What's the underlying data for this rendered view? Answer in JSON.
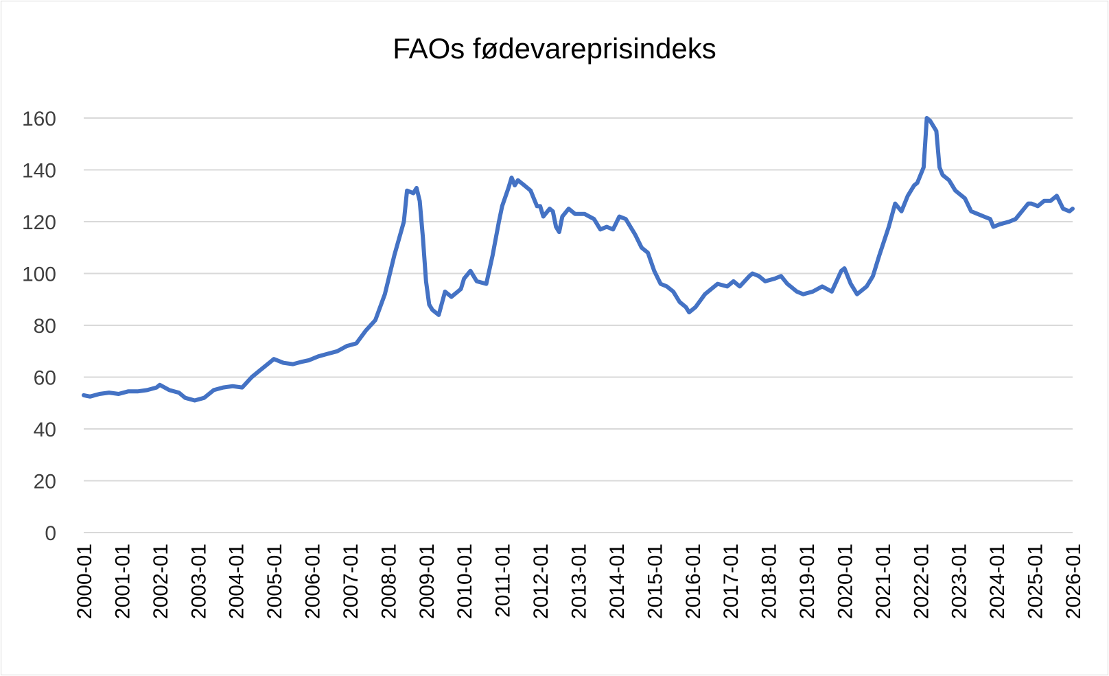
{
  "chart_data": {
    "type": "line",
    "title": "FAOs fødevareprisindeks",
    "xlabel": "",
    "ylabel": "",
    "ylim": [
      0,
      160
    ],
    "yticks": [
      "0",
      "20",
      "40",
      "60",
      "80",
      "100",
      "120",
      "140",
      "160"
    ],
    "xticks": [
      "2000-01",
      "2001-01",
      "2002-01",
      "2003-01",
      "2004-01",
      "2005-01",
      "2006-01",
      "2007-01",
      "2008-01",
      "2009-01",
      "2010-01",
      "2011-01",
      "2012-01",
      "2013-01",
      "2014-01",
      "2015-01",
      "2016-01",
      "2017-01",
      "2018-01",
      "2019-01",
      "2020-01",
      "2021-01",
      "2022-01",
      "2023-01",
      "2024-01",
      "2025-01",
      "2026-01"
    ],
    "grid": "horizontal",
    "line_color": "#4472c4",
    "series": [
      {
        "points": [
          [
            "2000-01",
            53
          ],
          [
            "2000-03",
            52.5
          ],
          [
            "2000-06",
            53.5
          ],
          [
            "2000-09",
            54
          ],
          [
            "2000-12",
            53.5
          ],
          [
            "2001-03",
            54.5
          ],
          [
            "2001-06",
            54.5
          ],
          [
            "2001-09",
            55
          ],
          [
            "2001-12",
            56
          ],
          [
            "2002-01",
            57
          ],
          [
            "2002-04",
            55
          ],
          [
            "2002-07",
            54
          ],
          [
            "2002-09",
            52
          ],
          [
            "2002-12",
            51
          ],
          [
            "2003-03",
            52
          ],
          [
            "2003-06",
            55
          ],
          [
            "2003-09",
            56
          ],
          [
            "2003-12",
            56.5
          ],
          [
            "2004-03",
            56
          ],
          [
            "2004-06",
            60
          ],
          [
            "2004-09",
            63
          ],
          [
            "2004-12",
            66
          ],
          [
            "2005-01",
            67
          ],
          [
            "2005-04",
            65.5
          ],
          [
            "2005-07",
            65
          ],
          [
            "2005-10",
            66
          ],
          [
            "2005-12",
            66.5
          ],
          [
            "2006-03",
            68
          ],
          [
            "2006-06",
            69
          ],
          [
            "2006-09",
            70
          ],
          [
            "2006-12",
            72
          ],
          [
            "2007-03",
            73
          ],
          [
            "2007-06",
            78
          ],
          [
            "2007-09",
            82
          ],
          [
            "2007-12",
            92
          ],
          [
            "2008-03",
            107
          ],
          [
            "2008-06",
            120
          ],
          [
            "2008-07",
            132
          ],
          [
            "2008-09",
            131
          ],
          [
            "2008-10",
            133
          ],
          [
            "2008-11",
            128
          ],
          [
            "2008-12",
            114
          ],
          [
            "2009-01",
            97
          ],
          [
            "2009-02",
            88
          ],
          [
            "2009-03",
            86
          ],
          [
            "2009-05",
            84
          ],
          [
            "2009-07",
            93
          ],
          [
            "2009-09",
            91
          ],
          [
            "2009-11",
            93
          ],
          [
            "2009-12",
            94
          ],
          [
            "2010-01",
            98
          ],
          [
            "2010-03",
            101
          ],
          [
            "2010-05",
            97
          ],
          [
            "2010-08",
            96
          ],
          [
            "2010-10",
            107
          ],
          [
            "2010-12",
            120
          ],
          [
            "2011-01",
            126
          ],
          [
            "2011-03",
            133
          ],
          [
            "2011-04",
            137
          ],
          [
            "2011-05",
            134
          ],
          [
            "2011-06",
            136
          ],
          [
            "2011-08",
            134
          ],
          [
            "2011-10",
            132
          ],
          [
            "2011-12",
            126
          ],
          [
            "2012-01",
            126
          ],
          [
            "2012-02",
            122
          ],
          [
            "2012-04",
            125
          ],
          [
            "2012-05",
            124
          ],
          [
            "2012-06",
            118
          ],
          [
            "2012-07",
            116
          ],
          [
            "2012-08",
            122
          ],
          [
            "2012-10",
            125
          ],
          [
            "2012-12",
            123
          ],
          [
            "2013-03",
            123
          ],
          [
            "2013-06",
            121
          ],
          [
            "2013-08",
            117
          ],
          [
            "2013-10",
            118
          ],
          [
            "2013-12",
            117
          ],
          [
            "2014-02",
            122
          ],
          [
            "2014-04",
            121
          ],
          [
            "2014-07",
            115
          ],
          [
            "2014-09",
            110
          ],
          [
            "2014-11",
            108
          ],
          [
            "2015-01",
            101
          ],
          [
            "2015-03",
            96
          ],
          [
            "2015-05",
            95
          ],
          [
            "2015-07",
            93
          ],
          [
            "2015-09",
            89
          ],
          [
            "2015-11",
            87
          ],
          [
            "2015-12",
            85
          ],
          [
            "2016-02",
            87
          ],
          [
            "2016-05",
            92
          ],
          [
            "2016-07",
            94
          ],
          [
            "2016-09",
            96
          ],
          [
            "2016-12",
            95
          ],
          [
            "2017-02",
            97
          ],
          [
            "2017-04",
            95
          ],
          [
            "2017-07",
            99
          ],
          [
            "2017-08",
            100
          ],
          [
            "2017-10",
            99
          ],
          [
            "2017-12",
            97
          ],
          [
            "2018-03",
            98
          ],
          [
            "2018-05",
            99
          ],
          [
            "2018-07",
            96
          ],
          [
            "2018-10",
            93
          ],
          [
            "2018-12",
            92
          ],
          [
            "2019-03",
            93
          ],
          [
            "2019-06",
            95
          ],
          [
            "2019-09",
            93
          ],
          [
            "2019-12",
            101
          ],
          [
            "2020-01",
            102
          ],
          [
            "2020-03",
            96
          ],
          [
            "2020-05",
            92
          ],
          [
            "2020-08",
            95
          ],
          [
            "2020-10",
            99
          ],
          [
            "2020-12",
            107
          ],
          [
            "2021-03",
            118
          ],
          [
            "2021-05",
            127
          ],
          [
            "2021-07",
            124
          ],
          [
            "2021-09",
            130
          ],
          [
            "2021-11",
            134
          ],
          [
            "2021-12",
            135
          ],
          [
            "2022-02",
            141
          ],
          [
            "2022-03",
            160
          ],
          [
            "2022-04",
            159
          ],
          [
            "2022-05",
            157
          ],
          [
            "2022-06",
            155
          ],
          [
            "2022-07",
            141
          ],
          [
            "2022-08",
            138
          ],
          [
            "2022-10",
            136
          ],
          [
            "2022-12",
            132
          ],
          [
            "2023-03",
            129
          ],
          [
            "2023-05",
            124
          ],
          [
            "2023-07",
            123
          ],
          [
            "2023-09",
            122
          ],
          [
            "2023-11",
            121
          ],
          [
            "2023-12",
            118
          ],
          [
            "2024-02",
            119
          ],
          [
            "2024-05",
            120
          ],
          [
            "2024-07",
            121
          ],
          [
            "2024-09",
            124
          ],
          [
            "2024-11",
            127
          ],
          [
            "2024-12",
            127
          ],
          [
            "2025-02",
            126
          ],
          [
            "2025-04",
            128
          ],
          [
            "2025-06",
            128
          ],
          [
            "2025-08",
            130
          ],
          [
            "2025-10",
            125
          ],
          [
            "2025-12",
            124
          ],
          [
            "2026-01",
            125
          ]
        ]
      }
    ]
  }
}
